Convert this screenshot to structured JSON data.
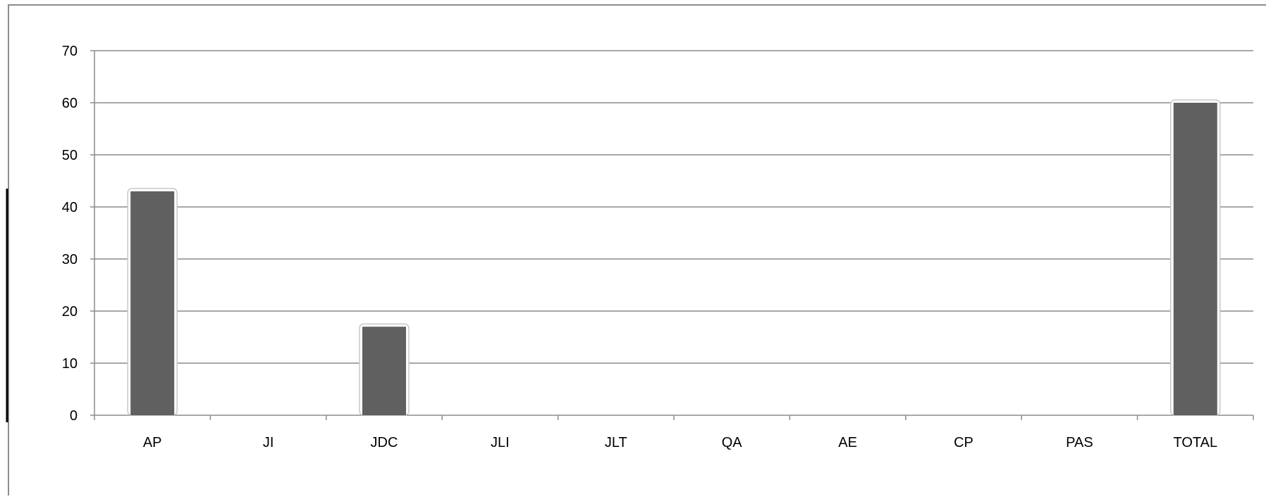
{
  "chart_data": {
    "type": "bar",
    "title": "",
    "xlabel": "",
    "ylabel": "",
    "categories": [
      "AP",
      "JI",
      "JDC",
      "JLI",
      "JLT",
      "QA",
      "AE",
      "CP",
      "PAS",
      "TOTAL"
    ],
    "values": [
      43,
      0,
      17,
      0,
      0,
      0,
      0,
      0,
      0,
      60
    ],
    "ylim": [
      0,
      70
    ],
    "yticks": [
      0,
      10,
      20,
      30,
      40,
      50,
      60,
      70
    ],
    "grid": true,
    "legend": "none",
    "bar_color": "#606060"
  }
}
